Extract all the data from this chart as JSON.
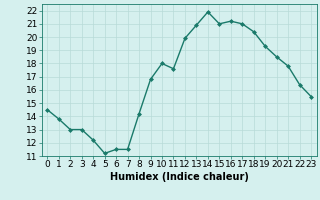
{
  "x": [
    0,
    1,
    2,
    3,
    4,
    5,
    6,
    7,
    8,
    9,
    10,
    11,
    12,
    13,
    14,
    15,
    16,
    17,
    18,
    19,
    20,
    21,
    22,
    23
  ],
  "y": [
    14.5,
    13.8,
    13.0,
    13.0,
    12.2,
    11.2,
    11.5,
    11.5,
    14.2,
    16.8,
    18.0,
    17.6,
    19.9,
    20.9,
    21.9,
    21.0,
    21.2,
    21.0,
    20.4,
    19.3,
    18.5,
    17.8,
    16.4,
    15.5
  ],
  "line_color": "#1a7a6a",
  "marker": "D",
  "marker_size": 2.0,
  "bg_color": "#d5f0ee",
  "grid_color": "#b8dbd8",
  "xlabel": "Humidex (Indice chaleur)",
  "xlim": [
    -0.5,
    23.5
  ],
  "ylim": [
    11,
    22.5
  ],
  "yticks": [
    11,
    12,
    13,
    14,
    15,
    16,
    17,
    18,
    19,
    20,
    21,
    22
  ],
  "xticks": [
    0,
    1,
    2,
    3,
    4,
    5,
    6,
    7,
    8,
    9,
    10,
    11,
    12,
    13,
    14,
    15,
    16,
    17,
    18,
    19,
    20,
    21,
    22,
    23
  ],
  "xlabel_fontsize": 7,
  "tick_fontsize": 6.5,
  "linewidth": 1.0
}
